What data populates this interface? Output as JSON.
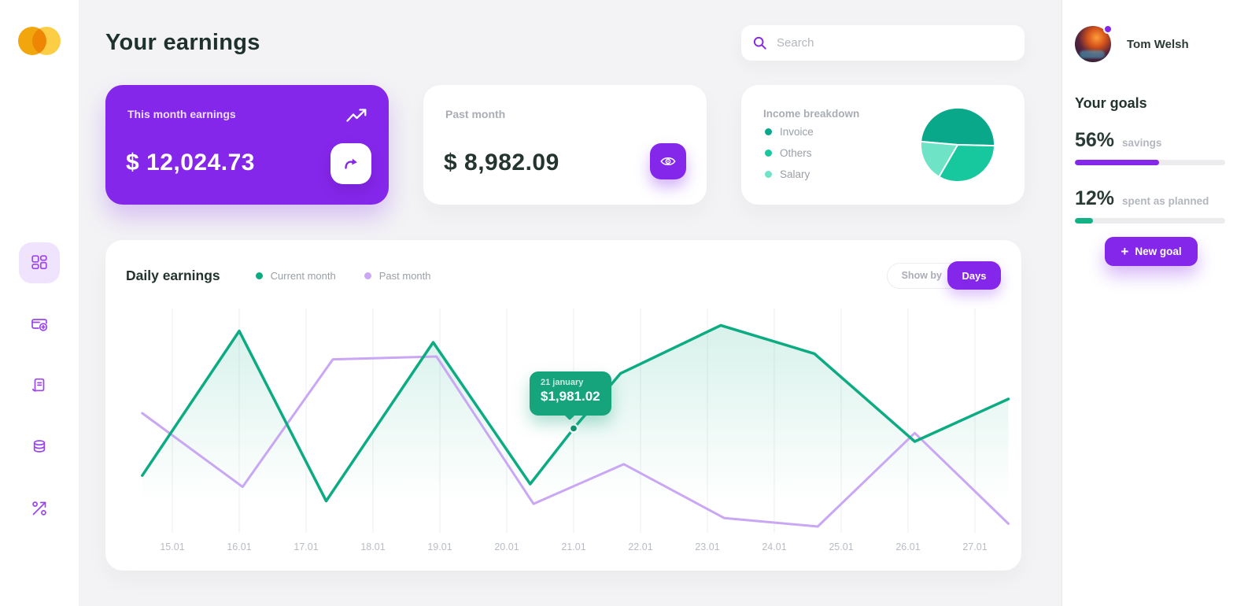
{
  "colors": {
    "accent_purple": "#8527ea",
    "green": "#0cab82",
    "light_purple_line": "#c9a7f5",
    "background": "#f3f3f5",
    "dark_text": "#22332e",
    "gray_text": "#a9adb4"
  },
  "header": {
    "title": "Your earnings",
    "search_placeholder": "Search"
  },
  "sidebar": {
    "icons": [
      "dashboard",
      "card-add",
      "document",
      "coins",
      "percent-rate"
    ],
    "active": "dashboard"
  },
  "cards": {
    "this_month": {
      "label": "This month earnings",
      "amount": "$ 12,024.73"
    },
    "past_month": {
      "label": "Past month",
      "amount": "$ 8,982.09"
    }
  },
  "chart_controls": {
    "show_by": "Show by",
    "mode": "Days"
  },
  "chart_data": [
    {
      "type": "line",
      "title": "Daily earnings",
      "x_labels": [
        "15.01",
        "16.01",
        "17.01",
        "18.01",
        "19.01",
        "20.01",
        "21.01",
        "22.01",
        "23.01",
        "24.01",
        "25.01",
        "26.01",
        "27.01"
      ],
      "x_range_days": [
        14.55,
        27.5
      ],
      "y_range": [
        0,
        4000
      ],
      "grid": true,
      "grid_color": "#ededf1",
      "tick_color": "#b8bcc4",
      "legend_position": "top",
      "series": [
        {
          "name": "Current month",
          "color": "#0cab82",
          "area_fill": true,
          "points": [
            [
              14.55,
              1150
            ],
            [
              16,
              3700
            ],
            [
              17.3,
              700
            ],
            [
              18.9,
              3500
            ],
            [
              20.35,
              1000
            ],
            [
              21,
              1981.02
            ],
            [
              21.7,
              2950
            ],
            [
              23.2,
              3800
            ],
            [
              24.6,
              3300
            ],
            [
              26.1,
              1750
            ],
            [
              27.5,
              2500
            ]
          ]
        },
        {
          "name": "Past month",
          "color": "#c9a7f5",
          "area_fill": false,
          "points": [
            [
              14.55,
              2250
            ],
            [
              16.05,
              950
            ],
            [
              17.4,
              3200
            ],
            [
              18.95,
              3250
            ],
            [
              20.4,
              650
            ],
            [
              21.75,
              1350
            ],
            [
              23.25,
              400
            ],
            [
              24.65,
              250
            ],
            [
              26.1,
              1900
            ],
            [
              27.5,
              300
            ]
          ]
        }
      ],
      "tooltip": {
        "day": 21,
        "value": 1981.02,
        "date_label": "21 january",
        "value_label": "$1,981.02"
      }
    },
    {
      "type": "pie",
      "title": "Income breakdown",
      "labels": [
        "Invoice",
        "Others",
        "Salary"
      ],
      "values": [
        49,
        33,
        18
      ],
      "colors": [
        "#09a88b",
        "#17c79e",
        "#6fe3c6"
      ],
      "start_angle_deg": 185,
      "legend_position": "left"
    }
  ],
  "goals": {
    "user": "Tom Welsh",
    "title": "Your goals",
    "items": [
      {
        "pct": "56%",
        "label": "savings",
        "value": 56,
        "color": "#8527ea"
      },
      {
        "pct": "12%",
        "label": "spent as planned",
        "value": 12,
        "color": "#12b286"
      }
    ],
    "button": {
      "plus": "+",
      "label": "New goal"
    }
  }
}
